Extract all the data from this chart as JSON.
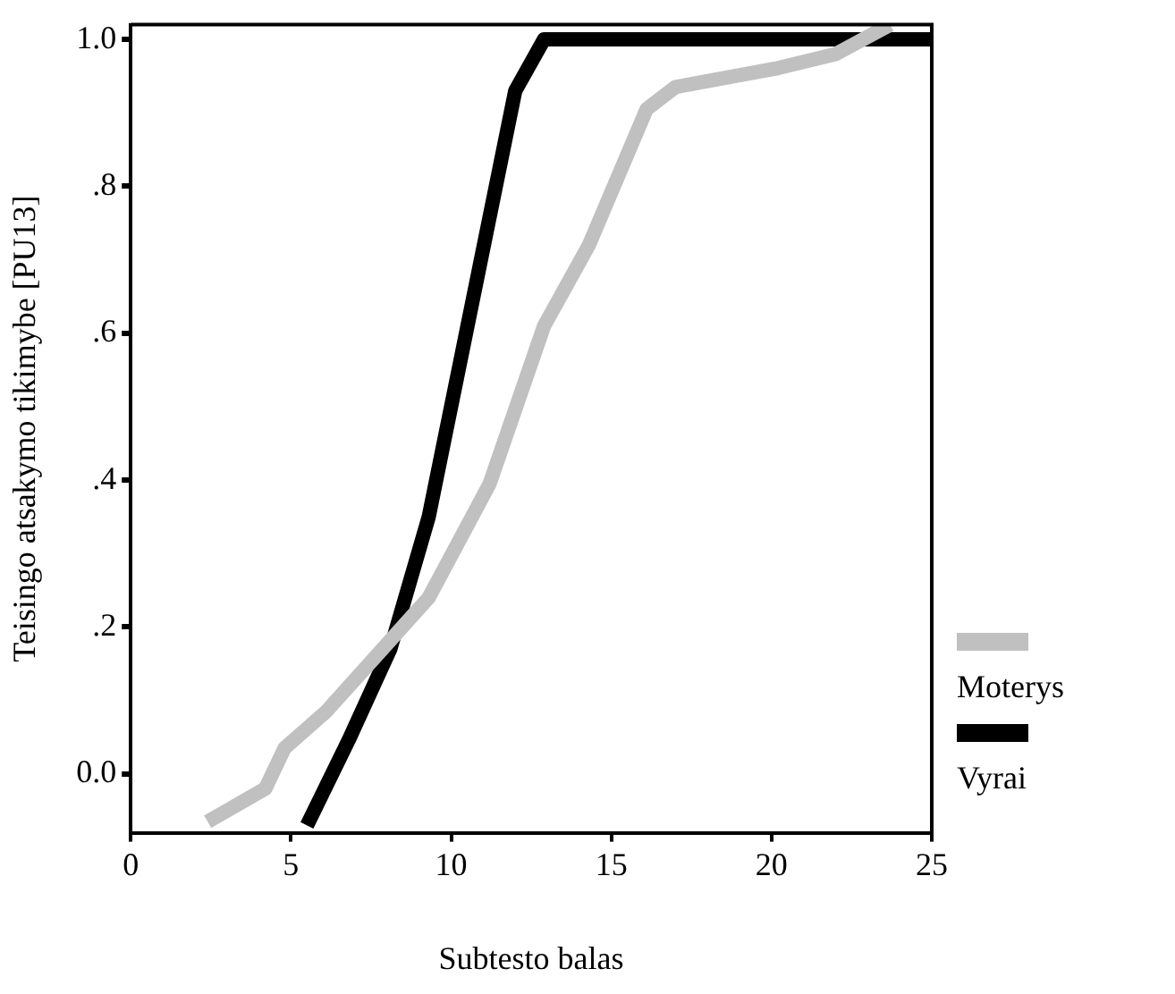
{
  "chart_data": {
    "type": "line",
    "xlabel": "Subtesto balas",
    "ylabel": "Teisingo atsakymo tikimybe [PU13]",
    "xlim": [
      0,
      25
    ],
    "xticks": [
      0,
      5,
      10,
      15,
      20,
      25
    ],
    "ylim": [
      -0.08,
      1.02
    ],
    "yticks": [
      {
        "value": 0,
        "label": "0.0"
      },
      {
        "value": 0.2,
        "label": ".2"
      },
      {
        "value": 0.4,
        "label": ".4"
      },
      {
        "value": 0.6,
        "label": ".6"
      },
      {
        "value": 0.8,
        "label": ".8"
      },
      {
        "value": 1,
        "label": "1.0"
      }
    ],
    "series": [
      {
        "name": "Moterys",
        "color": "#c0c0c0",
        "x": [
          2.4,
          4.2,
          4.8,
          6.1,
          9.3,
          11.2,
          12.9,
          14.3,
          16.1,
          17.0,
          20.1,
          22.0,
          23.7
        ],
        "values": [
          -0.065,
          -0.02,
          0.035,
          0.085,
          0.24,
          0.395,
          0.61,
          0.72,
          0.905,
          0.935,
          0.96,
          0.98,
          1.02
        ]
      },
      {
        "name": "Vyrai",
        "color": "#000000",
        "x": [
          5.5,
          6.8,
          8.1,
          9.3,
          12.0,
          12.9,
          25
        ],
        "values": [
          -0.07,
          0.046,
          0.17,
          0.35,
          0.93,
          1.0,
          1.0
        ]
      }
    ],
    "legend": "right",
    "grid": false,
    "marker": "none",
    "line_style": "solid"
  }
}
